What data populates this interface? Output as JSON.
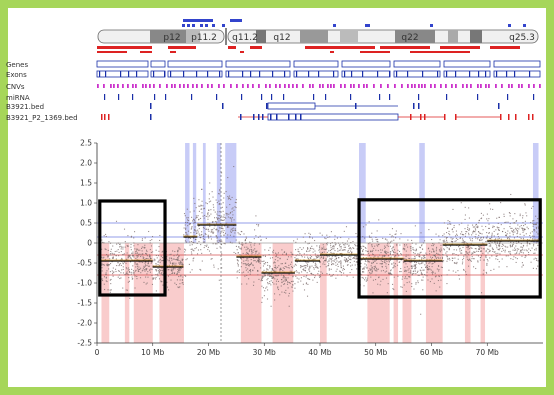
{
  "colors": {
    "frame": "#a6d65a",
    "cnv_magenta": "#cc33cc",
    "gain_blue": "#3344cc",
    "loss_red": "#dd2222",
    "exon_blue": "#1a2fa8",
    "highlight_blue": "#c8ccf7",
    "highlight_red": "#f9cccc",
    "point_gray": "#7a6a6a",
    "ref_blue": "#6070e0",
    "ref_red": "#d04040",
    "trend_orange": "#e0a020"
  },
  "ideogram": {
    "bands": [
      {
        "label": "p12",
        "text_x": 172
      },
      {
        "label": "p11.2",
        "text_x": 204
      },
      {
        "label": "q11.2",
        "text_x": 245
      },
      {
        "label": "q12",
        "text_x": 282
      },
      {
        "label": "q22",
        "text_x": 410
      },
      {
        "label": "q25.3",
        "text_x": 522
      }
    ]
  },
  "tracks": [
    {
      "label": "Genes"
    },
    {
      "label": "Exons"
    },
    {
      "label": "CNVs"
    },
    {
      "label": "miRNA"
    },
    {
      "label": "B3921.bed"
    },
    {
      "label": "B3921_P2_1369.bed"
    }
  ],
  "chart_data": {
    "type": "scatter",
    "title": "",
    "xlabel": "",
    "ylabel": "",
    "xlim": [
      0,
      80
    ],
    "ylim": [
      -2.5,
      2.5
    ],
    "x_ticks": [
      {
        "value": 0,
        "label": "0"
      },
      {
        "value": 10,
        "label": "10 Mb"
      },
      {
        "value": 20,
        "label": "20 Mb"
      },
      {
        "value": 30,
        "label": "30 Mb"
      },
      {
        "value": 40,
        "label": "40 Mb"
      },
      {
        "value": 50,
        "label": "50 Mb"
      },
      {
        "value": 60,
        "label": "60 Mb"
      },
      {
        "value": 70,
        "label": "70 Mb"
      }
    ],
    "y_ticks": [
      {
        "value": 2.5,
        "label": "2.5"
      },
      {
        "value": 2.0,
        "label": "2.0"
      },
      {
        "value": 1.5,
        "label": "1.5"
      },
      {
        "value": 1.0,
        "label": "1.0"
      },
      {
        "value": 0.5,
        "label": "0.5"
      },
      {
        "value": 0,
        "label": "0"
      },
      {
        "value": -0.5,
        "label": "-0.5"
      },
      {
        "value": -1.0,
        "label": "-1.0"
      },
      {
        "value": -1.5,
        "label": "-1.5"
      },
      {
        "value": -2.0,
        "label": "-2.0"
      },
      {
        "value": -2.5,
        "label": "-2.5"
      }
    ],
    "reference_lines": [
      {
        "y": 0.5,
        "color": "#6070e0"
      },
      {
        "y": 0.15,
        "color": "#6070e0"
      },
      {
        "y": 0,
        "color": "#999999"
      },
      {
        "y": -0.3,
        "color": "#d04040"
      },
      {
        "y": -0.8,
        "color": "#d04040"
      }
    ],
    "segments": [
      {
        "x0": 0.5,
        "x1": 10,
        "y": -0.45,
        "sd": 0.3
      },
      {
        "x0": 10,
        "x1": 15.5,
        "y": -0.6,
        "sd": 0.25
      },
      {
        "x0": 15.5,
        "x1": 18,
        "y": 0.15,
        "sd": 0.4
      },
      {
        "x0": 18,
        "x1": 25,
        "y": 0.45,
        "sd": 0.45
      },
      {
        "x0": 25,
        "x1": 29.5,
        "y": -0.35,
        "sd": 0.3
      },
      {
        "x0": 29.5,
        "x1": 35.5,
        "y": -0.75,
        "sd": 0.3
      },
      {
        "x0": 35.5,
        "x1": 40,
        "y": -0.45,
        "sd": 0.3
      },
      {
        "x0": 40,
        "x1": 47,
        "y": -0.3,
        "sd": 0.25
      },
      {
        "x0": 47,
        "x1": 55,
        "y": -0.4,
        "sd": 0.35
      },
      {
        "x0": 55,
        "x1": 62,
        "y": -0.45,
        "sd": 0.3
      },
      {
        "x0": 62,
        "x1": 70,
        "y": -0.05,
        "sd": 0.35
      },
      {
        "x0": 70,
        "x1": 79.5,
        "y": 0.05,
        "sd": 0.35
      }
    ],
    "highlight_gain": [
      [
        15.8,
        16.6
      ],
      [
        17.2,
        17.8
      ],
      [
        19.0,
        19.5
      ],
      [
        21.5,
        22.2
      ],
      [
        23.0,
        25.0
      ],
      [
        47.0,
        48.2
      ],
      [
        57.8,
        58.8
      ],
      [
        78.2,
        79.2
      ]
    ],
    "highlight_loss": [
      [
        0.8,
        2.2
      ],
      [
        5.0,
        5.8
      ],
      [
        6.6,
        10.0
      ],
      [
        11.2,
        15.6
      ],
      [
        25.8,
        29.5
      ],
      [
        31.5,
        35.2
      ],
      [
        40.0,
        41.2
      ],
      [
        48.5,
        52.5
      ],
      [
        53.2,
        54.0
      ],
      [
        54.8,
        56.4
      ],
      [
        59.0,
        62.0
      ],
      [
        66.0,
        67.0
      ],
      [
        68.8,
        69.6
      ]
    ],
    "annotation_boxes": [
      {
        "x0": 0.5,
        "x1": 12.2,
        "y0": -1.3,
        "y1": 1.05
      },
      {
        "x0": 47.0,
        "x1": 79.5,
        "y0": -1.35,
        "y1": 1.08
      }
    ]
  }
}
